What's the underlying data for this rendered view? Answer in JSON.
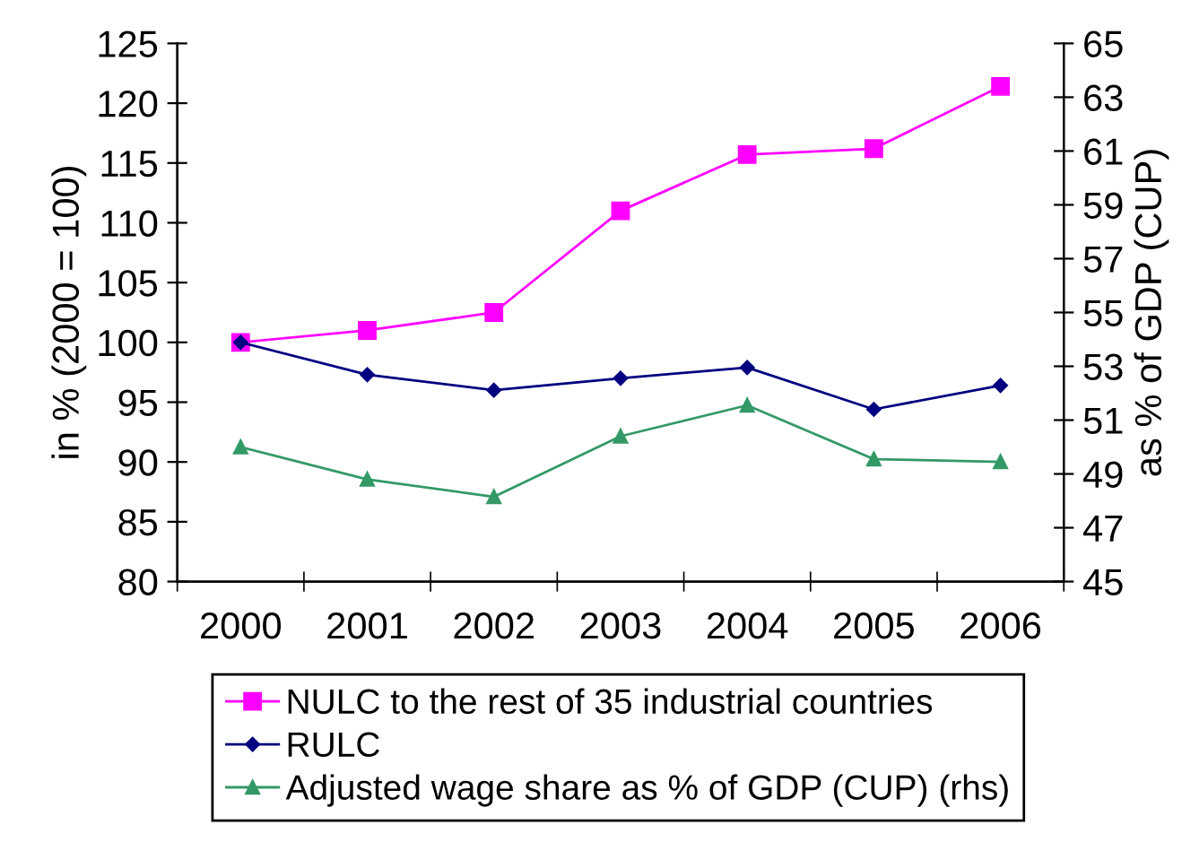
{
  "chart_data": {
    "type": "line",
    "categories": [
      "2000",
      "2001",
      "2002",
      "2003",
      "2004",
      "2005",
      "2006"
    ],
    "ylabel": "in % (2000 = 100)",
    "y2label": "as % of GDP (CUP)",
    "ylim": [
      80,
      125
    ],
    "yticks": [
      80,
      85,
      90,
      95,
      100,
      105,
      110,
      115,
      120,
      125
    ],
    "y2lim": [
      45,
      65
    ],
    "y2ticks": [
      45,
      47,
      49,
      51,
      53,
      55,
      57,
      59,
      61,
      63,
      65
    ],
    "legend": "bottom",
    "grid": false,
    "series": [
      {
        "name": "NULC to the rest of 35 industrial countries",
        "color": "#ff00ff",
        "marker": "square",
        "values": [
          100,
          101,
          102.5,
          111,
          115.7,
          116.2,
          121.4
        ]
      },
      {
        "name": "RULC",
        "color": "#000080",
        "marker": "diamond",
        "values": [
          100,
          97.3,
          96,
          97,
          97.9,
          94.4,
          96.4
        ]
      },
      {
        "name": "Adjusted wage share as % of GDP (CUP) (rhs)",
        "color": "#339966",
        "marker": "triangle",
        "axis": "y2",
        "values": [
          50,
          48.8,
          48.15,
          50.4,
          51.55,
          49.55,
          49.45
        ]
      }
    ]
  }
}
